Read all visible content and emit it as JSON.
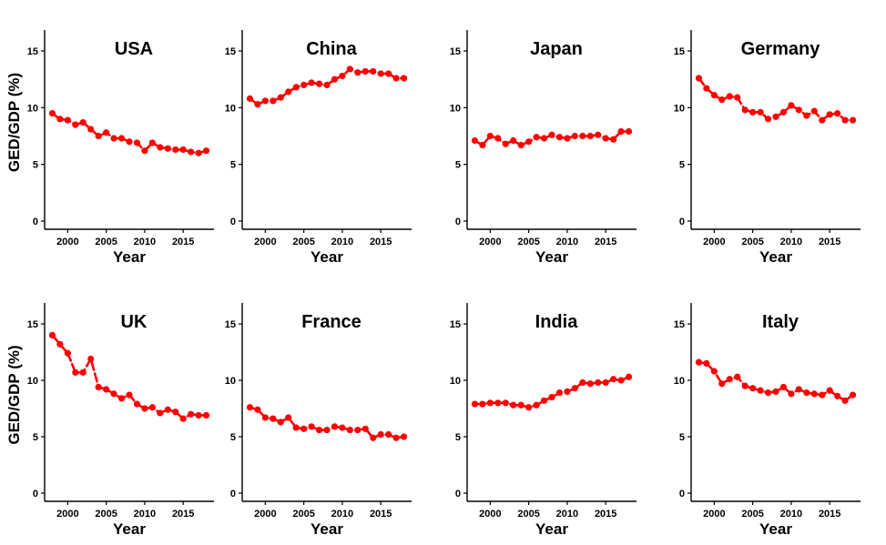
{
  "colors": {
    "series": "#ff0000",
    "axis": "#000000",
    "background": "#ffffff"
  },
  "chart_data": [
    {
      "type": "line",
      "title": "USA",
      "xlabel": "Year",
      "ylabel": "GED/GDP (%)",
      "xlim": [
        1997,
        2019
      ],
      "ylim": [
        0,
        17
      ],
      "xticks": [
        "2000",
        "2005",
        "2010",
        "2015"
      ],
      "yticks": [
        "0",
        "5",
        "10",
        "15"
      ],
      "grid": false,
      "x": [
        1998,
        1999,
        2000,
        2001,
        2002,
        2003,
        2004,
        2005,
        2006,
        2007,
        2008,
        2009,
        2010,
        2011,
        2012,
        2013,
        2014,
        2015,
        2016,
        2017,
        2018
      ],
      "y": [
        9.5,
        9.0,
        8.9,
        8.5,
        8.7,
        8.1,
        7.5,
        7.8,
        7.3,
        7.3,
        7.0,
        6.9,
        6.2,
        6.9,
        6.5,
        6.4,
        6.3,
        6.3,
        6.1,
        6.0,
        6.2
      ]
    },
    {
      "type": "line",
      "title": "China",
      "xlabel": "Year",
      "ylabel": "",
      "xlim": [
        1997,
        2019
      ],
      "ylim": [
        0,
        17
      ],
      "xticks": [
        "2000",
        "2005",
        "2010",
        "2015"
      ],
      "yticks": [
        "0",
        "5",
        "10",
        "15"
      ],
      "grid": false,
      "x": [
        1998,
        1999,
        2000,
        2001,
        2002,
        2003,
        2004,
        2005,
        2006,
        2007,
        2008,
        2009,
        2010,
        2011,
        2012,
        2013,
        2014,
        2015,
        2016,
        2017,
        2018
      ],
      "y": [
        10.8,
        10.3,
        10.6,
        10.6,
        10.9,
        11.4,
        11.8,
        12.0,
        12.2,
        12.1,
        12.0,
        12.5,
        12.8,
        13.4,
        13.1,
        13.2,
        13.2,
        13.0,
        13.0,
        12.6,
        12.6
      ]
    },
    {
      "type": "line",
      "title": "Japan",
      "xlabel": "Year",
      "ylabel": "",
      "xlim": [
        1997,
        2019
      ],
      "ylim": [
        0,
        17
      ],
      "xticks": [
        "2000",
        "2005",
        "2010",
        "2015"
      ],
      "yticks": [
        "0",
        "5",
        "10",
        "15"
      ],
      "grid": false,
      "x": [
        1998,
        1999,
        2000,
        2001,
        2002,
        2003,
        2004,
        2005,
        2006,
        2007,
        2008,
        2009,
        2010,
        2011,
        2012,
        2013,
        2014,
        2015,
        2016,
        2017,
        2018
      ],
      "y": [
        7.1,
        6.7,
        7.5,
        7.3,
        6.8,
        7.1,
        6.7,
        7.0,
        7.4,
        7.3,
        7.6,
        7.4,
        7.3,
        7.5,
        7.5,
        7.5,
        7.6,
        7.3,
        7.2,
        7.9,
        7.9
      ]
    },
    {
      "type": "line",
      "title": "Germany",
      "xlabel": "Year",
      "ylabel": "",
      "xlim": [
        1997,
        2019
      ],
      "ylim": [
        0,
        17
      ],
      "xticks": [
        "2000",
        "2005",
        "2010",
        "2015"
      ],
      "yticks": [
        "0",
        "5",
        "10",
        "15"
      ],
      "grid": false,
      "x": [
        1998,
        1999,
        2000,
        2001,
        2002,
        2003,
        2004,
        2005,
        2006,
        2007,
        2008,
        2009,
        2010,
        2011,
        2012,
        2013,
        2014,
        2015,
        2016,
        2017,
        2018
      ],
      "y": [
        12.6,
        11.7,
        11.1,
        10.7,
        11.0,
        10.9,
        9.8,
        9.6,
        9.6,
        9.0,
        9.2,
        9.6,
        10.2,
        9.8,
        9.3,
        9.7,
        8.9,
        9.4,
        9.5,
        8.9,
        8.9
      ]
    },
    {
      "type": "line",
      "title": "UK",
      "xlabel": "Year",
      "ylabel": "GED/GDP (%)",
      "xlim": [
        1997,
        2019
      ],
      "ylim": [
        0,
        17
      ],
      "xticks": [
        "2000",
        "2005",
        "2010",
        "2015"
      ],
      "yticks": [
        "0",
        "5",
        "10",
        "15"
      ],
      "grid": false,
      "x": [
        1998,
        1999,
        2000,
        2001,
        2002,
        2003,
        2004,
        2005,
        2006,
        2007,
        2008,
        2009,
        2010,
        2011,
        2012,
        2013,
        2014,
        2015,
        2016,
        2017,
        2018
      ],
      "y": [
        14.0,
        13.2,
        12.4,
        10.7,
        10.7,
        11.9,
        9.4,
        9.2,
        8.8,
        8.4,
        8.7,
        7.9,
        7.5,
        7.6,
        7.1,
        7.4,
        7.2,
        6.6,
        7.0,
        6.9,
        6.9
      ]
    },
    {
      "type": "line",
      "title": "France",
      "xlabel": "Year",
      "ylabel": "",
      "xlim": [
        1997,
        2019
      ],
      "ylim": [
        0,
        17
      ],
      "xticks": [
        "2000",
        "2005",
        "2010",
        "2015"
      ],
      "yticks": [
        "0",
        "5",
        "10",
        "15"
      ],
      "grid": false,
      "x": [
        1998,
        1999,
        2000,
        2001,
        2002,
        2003,
        2004,
        2005,
        2006,
        2007,
        2008,
        2009,
        2010,
        2011,
        2012,
        2013,
        2014,
        2015,
        2016,
        2017,
        2018
      ],
      "y": [
        7.6,
        7.4,
        6.7,
        6.6,
        6.3,
        6.7,
        5.8,
        5.7,
        5.9,
        5.6,
        5.6,
        5.9,
        5.8,
        5.6,
        5.6,
        5.7,
        4.9,
        5.2,
        5.2,
        4.9,
        5.0
      ]
    },
    {
      "type": "line",
      "title": "India",
      "xlabel": "Year",
      "ylabel": "",
      "xlim": [
        1997,
        2019
      ],
      "ylim": [
        0,
        17
      ],
      "xticks": [
        "2000",
        "2005",
        "2010",
        "2015"
      ],
      "yticks": [
        "0",
        "5",
        "10",
        "15"
      ],
      "grid": false,
      "x": [
        1998,
        1999,
        2000,
        2001,
        2002,
        2003,
        2004,
        2005,
        2006,
        2007,
        2008,
        2009,
        2010,
        2011,
        2012,
        2013,
        2014,
        2015,
        2016,
        2017,
        2018
      ],
      "y": [
        7.9,
        7.9,
        8.0,
        8.0,
        8.0,
        7.8,
        7.8,
        7.6,
        7.8,
        8.2,
        8.5,
        8.9,
        9.0,
        9.3,
        9.8,
        9.7,
        9.8,
        9.8,
        10.1,
        10.0,
        10.3
      ]
    },
    {
      "type": "line",
      "title": "Italy",
      "xlabel": "Year",
      "ylabel": "",
      "xlim": [
        1997,
        2019
      ],
      "ylim": [
        0,
        17
      ],
      "xticks": [
        "2000",
        "2005",
        "2010",
        "2015"
      ],
      "yticks": [
        "0",
        "5",
        "10",
        "15"
      ],
      "grid": false,
      "x": [
        1998,
        1999,
        2000,
        2001,
        2002,
        2003,
        2004,
        2005,
        2006,
        2007,
        2008,
        2009,
        2010,
        2011,
        2012,
        2013,
        2014,
        2015,
        2016,
        2017,
        2018
      ],
      "y": [
        11.6,
        11.5,
        10.8,
        9.7,
        10.1,
        10.3,
        9.5,
        9.3,
        9.1,
        8.9,
        9.0,
        9.4,
        8.8,
        9.2,
        8.9,
        8.8,
        8.7,
        9.1,
        8.6,
        8.2,
        8.7
      ]
    }
  ]
}
